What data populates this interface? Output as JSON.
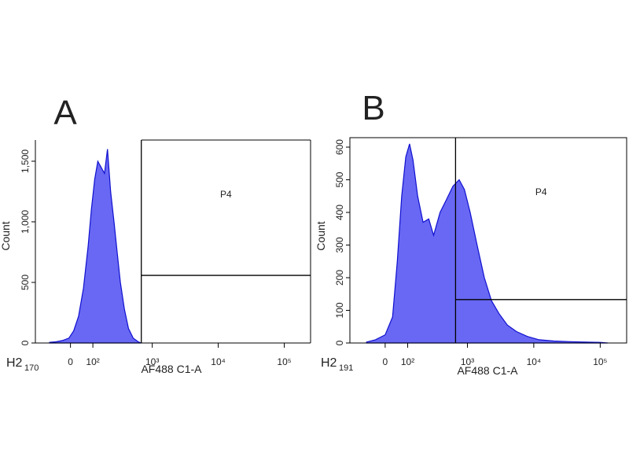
{
  "chart_data": [
    {
      "type": "histogram",
      "panel_label": "A",
      "sample_label": "H2",
      "sample_number": "170",
      "x_label": "AF488 C1-A",
      "y_label": "Count",
      "xscale": "biexponential",
      "xlim": [
        -180,
        250000
      ],
      "ylim": [
        0,
        1675
      ],
      "xticks": [
        0,
        {
          "value": 100,
          "label": "10²"
        },
        {
          "value": 1000,
          "label": "10³"
        },
        {
          "value": 10000,
          "label": "10⁴"
        },
        {
          "value": 100000,
          "label": "10⁵"
        }
      ],
      "yticks": [
        0,
        500,
        {
          "value": 1000,
          "label": "1,000"
        },
        {
          "value": 1500,
          "label": "1,500"
        }
      ],
      "color": "#6868f4",
      "edge_color": "#1010d0",
      "x": [
        -92,
        -61,
        -33,
        -6.5,
        13,
        33,
        54,
        76,
        92,
        110,
        128,
        149,
        172,
        195,
        221,
        252,
        284,
        320,
        371,
        430,
        510,
        609,
        681
      ],
      "values": [
        5,
        10,
        20,
        40,
        100,
        220,
        450,
        800,
        1100,
        1350,
        1500,
        1450,
        1400,
        1600,
        1250,
        1000,
        750,
        500,
        280,
        120,
        40,
        10,
        0
      ],
      "gate": {
        "name": "P4",
        "x": 680,
        "y": 558
      }
    },
    {
      "type": "histogram",
      "panel_label": "B",
      "sample_label": "H2",
      "sample_number": "191",
      "x_label": "AF488 C1-A",
      "y_label": "Count",
      "xscale": "biexponential",
      "xlim": [
        -180,
        250000
      ],
      "ylim": [
        0,
        629
      ],
      "xticks": [
        0,
        {
          "value": 100,
          "label": "10²"
        },
        {
          "value": 1000,
          "label": "10³"
        },
        {
          "value": 10000,
          "label": "10⁴"
        },
        {
          "value": 100000,
          "label": "10⁵"
        }
      ],
      "yticks": [
        0,
        100,
        200,
        300,
        400,
        500,
        600
      ],
      "color": "#6868f4",
      "edge_color": "#1010d0",
      "x": [
        -80,
        -40,
        0,
        30,
        50,
        70,
        90,
        110,
        130,
        160,
        200,
        250,
        300,
        380,
        480,
        600,
        750,
        900,
        1100,
        1400,
        1800,
        2300,
        3000,
        4000,
        5500,
        8000,
        12000,
        20000,
        35000,
        60000,
        100000,
        130000
      ],
      "values": [
        3,
        10,
        25,
        80,
        250,
        450,
        570,
        610,
        560,
        450,
        370,
        380,
        330,
        400,
        440,
        480,
        500,
        470,
        400,
        300,
        200,
        130,
        90,
        55,
        35,
        20,
        10,
        6,
        4,
        3,
        2,
        0
      ],
      "gate": {
        "name": "P4",
        "x": 660,
        "y": 133
      }
    }
  ]
}
